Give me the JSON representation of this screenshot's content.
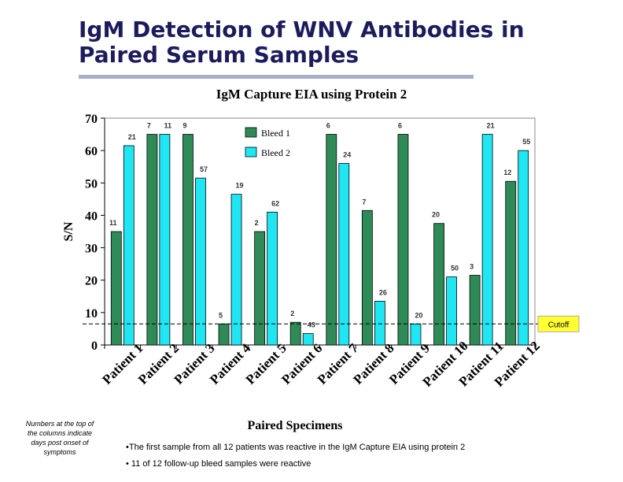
{
  "slide": {
    "title": "IgM Detection of WNV Antibodies in Paired Serum Samples"
  },
  "note": "Numbers at the top of the columns indicate days post onset of symptoms",
  "bullets": [
    "•The first sample from all 12 patients was reactive in the IgM Capture EIA using protein 2",
    "• 11 of 12 follow-up bleed samples were reactive"
  ],
  "colors": {
    "bleed1": "#2e8b57",
    "bleed2": "#1fe6f2",
    "cutoff_label_bg": "#ffff33",
    "title": "#1c1c5c"
  },
  "chart_data": {
    "type": "bar",
    "title": "IgM Capture EIA using Protein 2",
    "xlabel": "Paired Specimens",
    "ylabel": "S/N",
    "ylim": [
      0,
      70
    ],
    "yticks": [
      0,
      10,
      20,
      30,
      40,
      50,
      60,
      70
    ],
    "categories": [
      "Patient 1",
      "Patient 2",
      "Patient 3",
      "Patient 4",
      "Patient 5",
      "Patient 6",
      "Patient 7",
      "Patient 8",
      "Patient 9",
      "Patient 10",
      "Patient 11",
      "Patient 12"
    ],
    "series": [
      {
        "name": "Bleed 1",
        "values": [
          35,
          65,
          65,
          6.5,
          35,
          7,
          65,
          41.5,
          65,
          37.5,
          21.5,
          50.5
        ],
        "labels": [
          "11",
          "7",
          "9",
          "5",
          "2",
          "2",
          "6",
          "7",
          "6",
          "20",
          "3",
          "12"
        ]
      },
      {
        "name": "Bleed 2",
        "values": [
          61.5,
          65,
          51.5,
          46.5,
          41,
          3.5,
          56,
          13.5,
          6.5,
          21,
          65,
          60
        ],
        "labels": [
          "21",
          "11",
          "57",
          "19",
          "62",
          "43",
          "24",
          "26",
          "20",
          "50",
          "21",
          "55"
        ]
      }
    ],
    "cutoff": {
      "value": 6.5,
      "label": "Cutoff"
    },
    "legend": "top-center",
    "grid": false
  }
}
